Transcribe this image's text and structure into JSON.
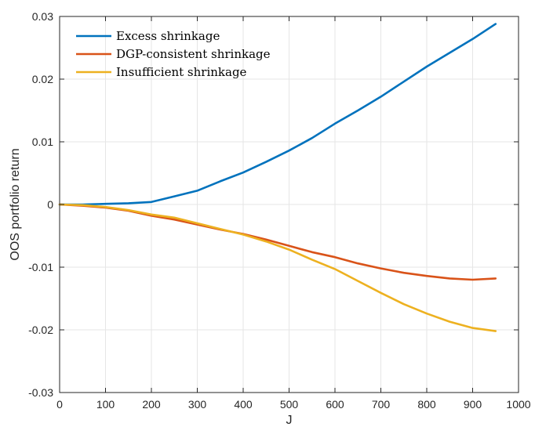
{
  "chart_data": {
    "type": "line",
    "title": "",
    "xlabel": "J",
    "ylabel": "OOS portfolio return",
    "xlim": [
      0,
      1000
    ],
    "ylim": [
      -0.03,
      0.03
    ],
    "xticks": [
      0,
      100,
      200,
      300,
      400,
      500,
      600,
      700,
      800,
      900,
      1000
    ],
    "xtick_labels": [
      "0",
      "100",
      "200",
      "300",
      "400",
      "500",
      "600",
      "700",
      "800",
      "900",
      "1000"
    ],
    "yticks": [
      -0.03,
      -0.02,
      -0.01,
      0,
      0.01,
      0.02,
      0.03
    ],
    "ytick_labels": [
      "-0.03",
      "-0.02",
      "-0.01",
      "0",
      "0.01",
      "0.02",
      "0.03"
    ],
    "grid": true,
    "legend_position": "top-left",
    "x": [
      0,
      50,
      100,
      150,
      200,
      250,
      300,
      350,
      400,
      450,
      500,
      550,
      600,
      650,
      700,
      750,
      800,
      850,
      900,
      950
    ],
    "series": [
      {
        "name": "Excess shrinkage",
        "color": "#0072BD",
        "values": [
          0,
          0,
          0.0001,
          0.0002,
          0.0004,
          0.0013,
          0.0022,
          0.0037,
          0.0051,
          0.0068,
          0.0086,
          0.0106,
          0.0129,
          0.015,
          0.0172,
          0.0196,
          0.022,
          0.0242,
          0.0264,
          0.0288
        ]
      },
      {
        "name": "DGP-consistent shrinkage",
        "color": "#D95319",
        "values": [
          0,
          -0.0002,
          -0.0005,
          -0.001,
          -0.0018,
          -0.0024,
          -0.0032,
          -0.004,
          -0.0047,
          -0.0056,
          -0.0066,
          -0.0076,
          -0.0084,
          -0.0094,
          -0.0102,
          -0.0109,
          -0.0114,
          -0.0118,
          -0.012,
          -0.0118
        ]
      },
      {
        "name": "Insufficient shrinkage",
        "color": "#EDB120",
        "values": [
          0,
          -0.0001,
          -0.0004,
          -0.0009,
          -0.0016,
          -0.0021,
          -0.003,
          -0.0039,
          -0.0048,
          -0.0059,
          -0.0072,
          -0.0088,
          -0.0103,
          -0.0122,
          -0.0141,
          -0.0159,
          -0.0174,
          -0.0187,
          -0.0197,
          -0.0202
        ]
      }
    ]
  }
}
